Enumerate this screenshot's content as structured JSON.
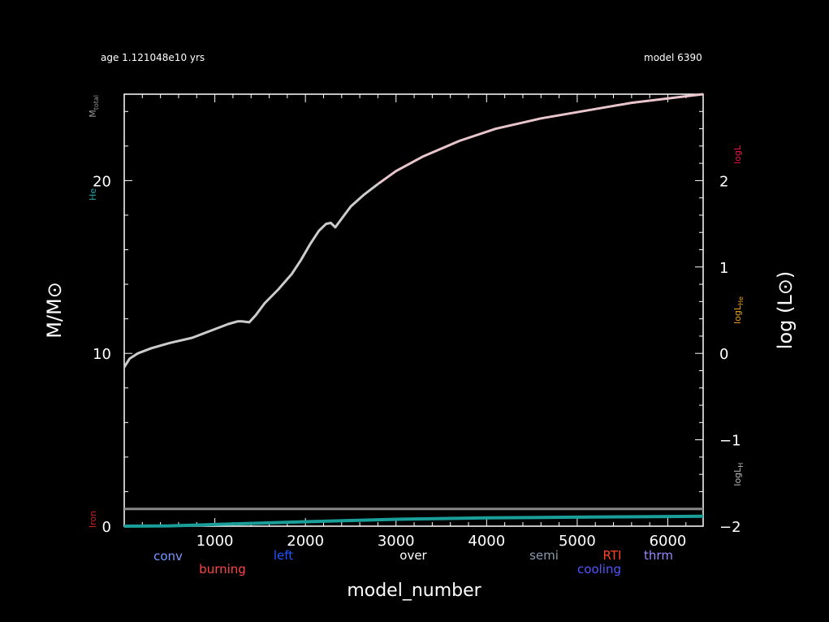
{
  "header": {
    "age_text": "age  1.121048e10  yrs",
    "model_text": "model  6390"
  },
  "colors": {
    "background": "#000000",
    "axes": "#ffffff",
    "mass_curve": "#cccccc",
    "logL_curve": "#e8c6cc",
    "he_core": "#1a9e9a",
    "flat_line": "#888888"
  },
  "chart_data": {
    "type": "line",
    "xlabel": "model_number",
    "ylabel_left": "M/M⊙",
    "ylabel_right": "log (L⊙)",
    "xlim": [
      0,
      6390
    ],
    "ylim_left": [
      0,
      25
    ],
    "ylim_right": [
      -2,
      3
    ],
    "x_ticks": [
      1000,
      2000,
      3000,
      4000,
      5000,
      6000
    ],
    "y_left_ticks": [
      0,
      10,
      20
    ],
    "y_right_ticks": [
      -2,
      -1,
      0,
      1,
      2
    ],
    "y_right_tick_labels": [
      "−2",
      "−1",
      "0",
      "1",
      "2"
    ],
    "left_axis_labels": [
      {
        "text": "M",
        "sub": "total",
        "color": "#999999",
        "y": 24.3
      },
      {
        "text": "He",
        "sub": "",
        "color": "#2aa0a8",
        "y": 19.2
      },
      {
        "text": "Iron",
        "sub": "",
        "color": "#cc2222",
        "y": 0.4
      }
    ],
    "right_axis_labels": [
      {
        "text": "logL",
        "sub": "",
        "color": "#ee1144",
        "y": 2.3
      },
      {
        "text": "logL",
        "sub": "He",
        "color": "#e8a020",
        "y": 0.5
      },
      {
        "text": "logL",
        "sub": "H",
        "color": "#bbbbbb",
        "y": -1.4
      }
    ],
    "legend_items": [
      {
        "text": "conv",
        "color": "#7799ff"
      },
      {
        "text": "burning",
        "color": "#ff4444"
      },
      {
        "text": "left",
        "color": "#2255ff"
      },
      {
        "text": "over",
        "color": "#ffffff"
      },
      {
        "text": "semi",
        "color": "#8899aa"
      },
      {
        "text": "cooling",
        "color": "#5555ff"
      },
      {
        "text": "RTI",
        "color": "#ff4422"
      },
      {
        "text": "thrm",
        "color": "#9988ff"
      }
    ],
    "series": [
      {
        "color": "#cccccc",
        "x": [
          0,
          60,
          150,
          300,
          500,
          750,
          950,
          1150,
          1250,
          1300,
          1380,
          1450,
          1550,
          1700,
          1850,
          1950,
          2050,
          2150,
          2230,
          2280,
          2330,
          2400,
          2500,
          2650,
          2800
        ],
        "y": [
          9.2,
          9.7,
          10.0,
          10.3,
          10.6,
          10.9,
          11.3,
          11.7,
          11.85,
          11.85,
          11.8,
          12.2,
          12.9,
          13.7,
          14.6,
          15.4,
          16.3,
          17.1,
          17.5,
          17.55,
          17.3,
          17.8,
          18.5,
          19.2,
          19.8
        ]
      },
      {
        "color": "#e8c6cc",
        "x": [
          2800,
          3000,
          3300,
          3700,
          4100,
          4600,
          5100,
          5600,
          6000,
          6390
        ],
        "y": [
          19.8,
          20.55,
          21.4,
          22.3,
          23.0,
          23.6,
          24.05,
          24.5,
          24.75,
          25.0
        ]
      },
      {
        "color": "#1a9e9a",
        "x": [
          0,
          500,
          1000,
          1500,
          2000,
          2500,
          3000,
          3500,
          4000,
          4500,
          5000,
          5500,
          6000,
          6390
        ],
        "y": [
          0.0,
          0.02,
          0.1,
          0.18,
          0.26,
          0.33,
          0.4,
          0.44,
          0.48,
          0.5,
          0.52,
          0.54,
          0.56,
          0.58
        ]
      },
      {
        "color": "#888888",
        "x": [
          0,
          6390
        ],
        "y": [
          1.0,
          1.0
        ]
      }
    ]
  }
}
